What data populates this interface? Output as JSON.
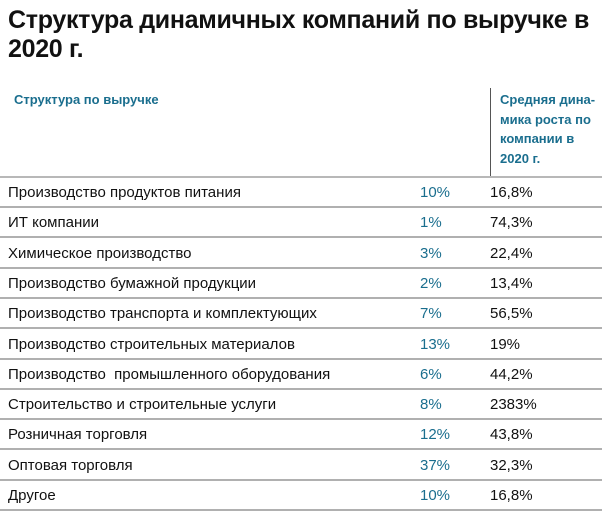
{
  "title": "Структура динамичных компаний по выручке в 2020 г.",
  "chart_data": {
    "type": "table",
    "title": "Структура динамичных компаний по выручке в 2020 г.",
    "columns": [
      "Структура по выручке",
      "",
      "Средняя динамика роста по компании в 2020 г."
    ],
    "header_col1": "Структура по выручке",
    "header_col3": "Средняя дина-мика роста по компании в 2020 г.",
    "accent_color": "#1a6e8e",
    "rows": [
      {
        "label": "Производство продуктов питания",
        "share": "10%",
        "growth": "16,8%"
      },
      {
        "label": "ИТ компании",
        "share": "1%",
        "growth": "74,3%"
      },
      {
        "label": "Химическое производство",
        "share": "3%",
        "growth": "22,4%"
      },
      {
        "label": "Производство бумажной продукции",
        "share": "2%",
        "growth": "13,4%"
      },
      {
        "label": "Производство транспорта и комплектующих",
        "share": "7%",
        "growth": "56,5%"
      },
      {
        "label": "Производство строительных материалов",
        "share": "13%",
        "growth": "19%"
      },
      {
        "label": "Производство  промышленного оборудования",
        "share": "6%",
        "growth": "44,2%"
      },
      {
        "label": "Строительство и строительные услуги",
        "share": "8%",
        "growth": "2383%"
      },
      {
        "label": "Розничная торговля",
        "share": "12%",
        "growth": "43,8%"
      },
      {
        "label": "Оптовая торговля",
        "share": "37%",
        "growth": "32,3%"
      },
      {
        "label": "Другое",
        "share": "10%",
        "growth": "16,8%"
      }
    ]
  }
}
